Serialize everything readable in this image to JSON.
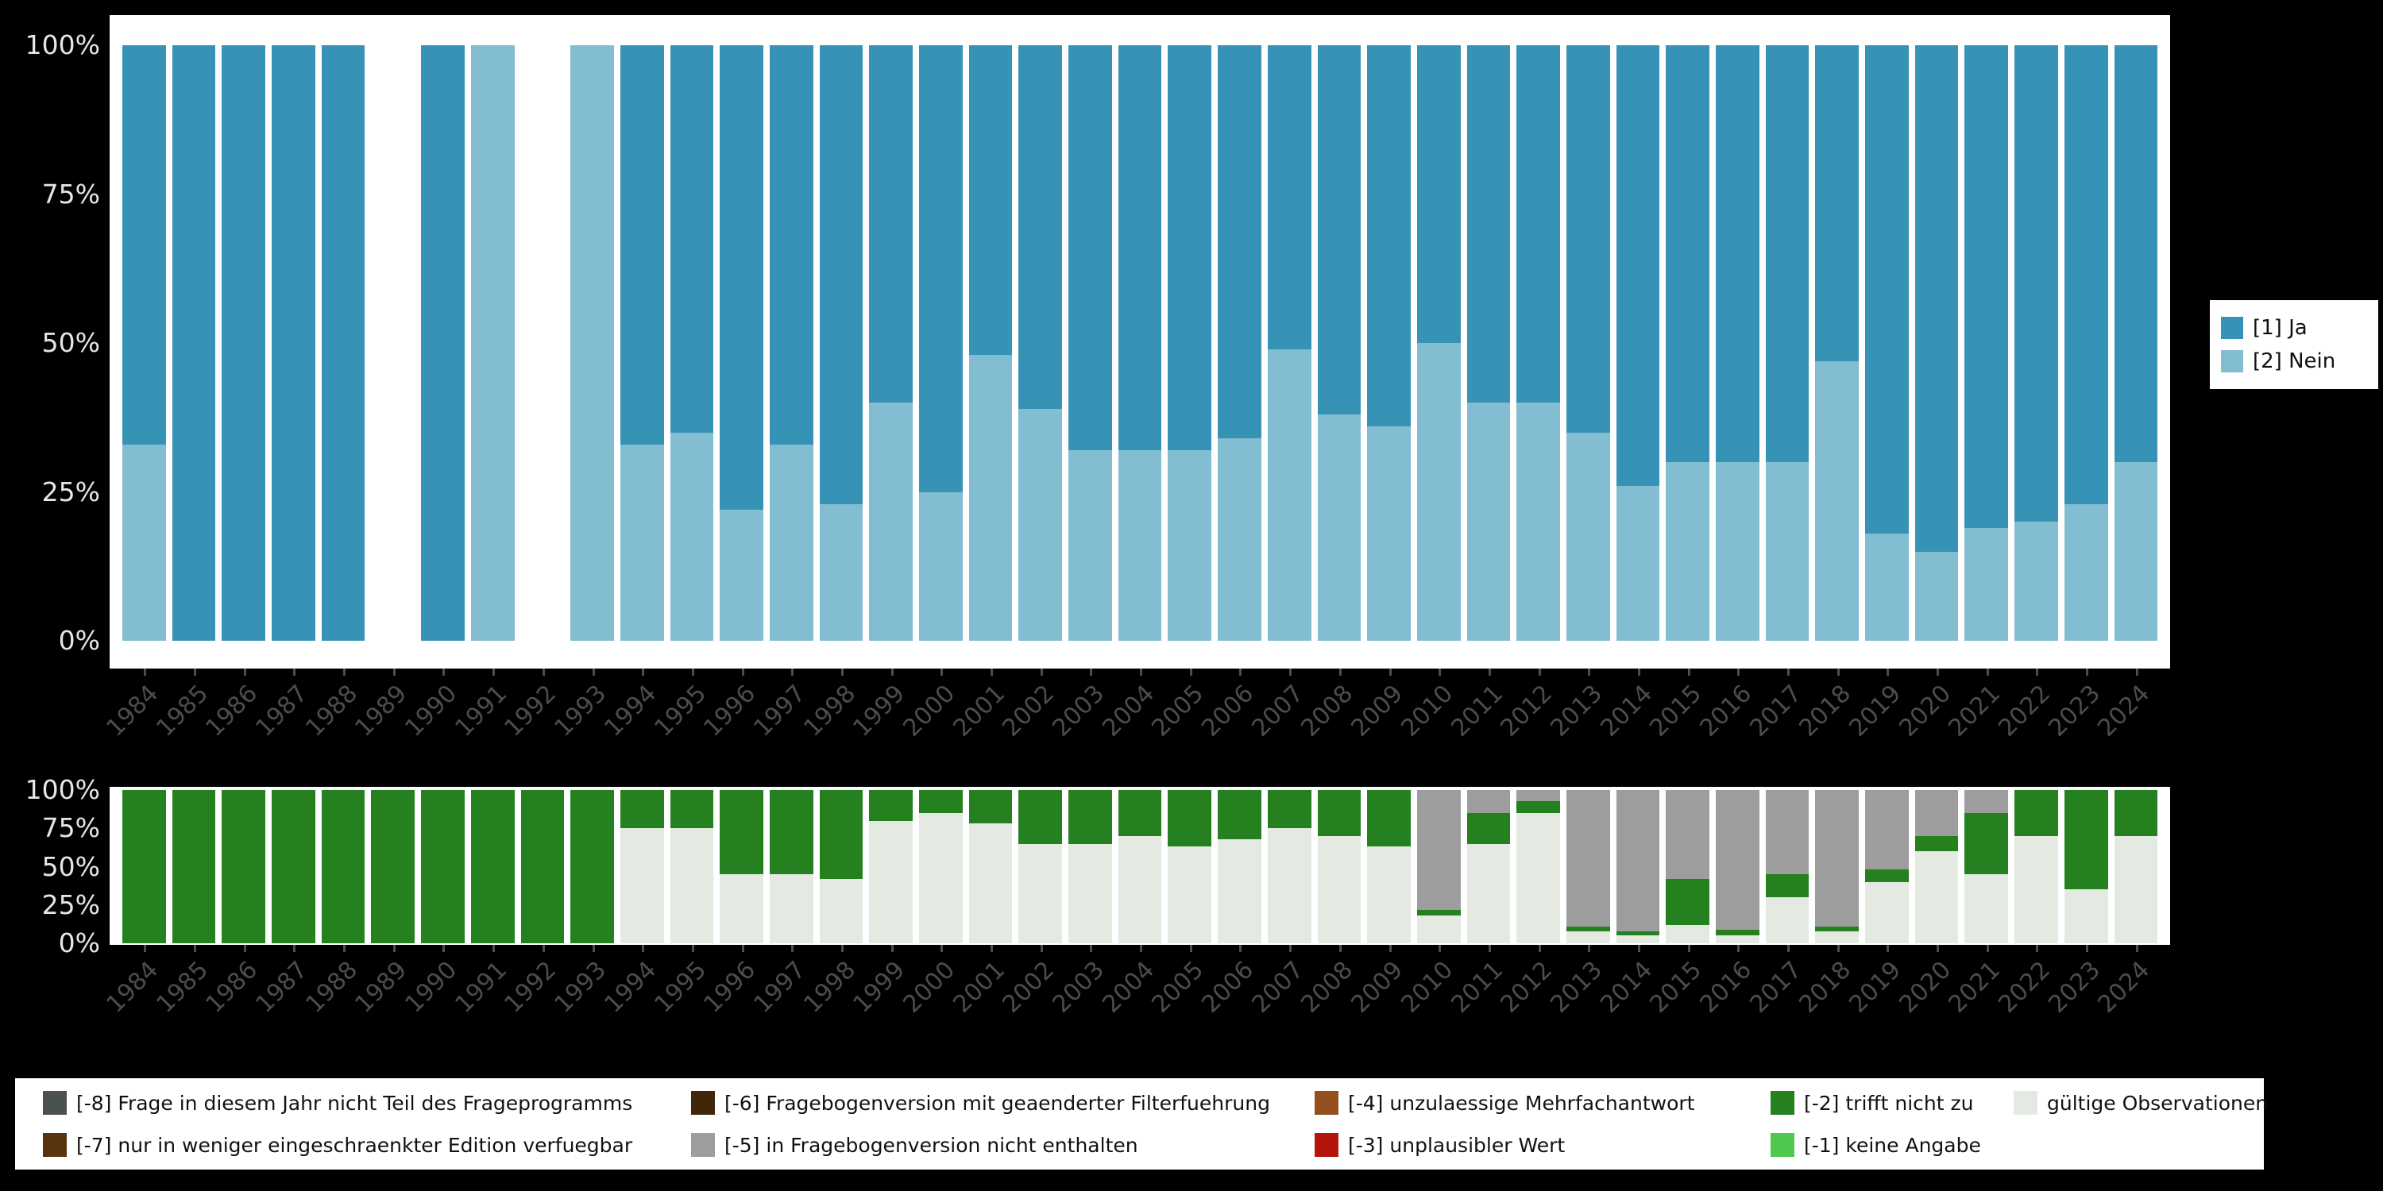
{
  "figure": {
    "background": "#000000",
    "panel_background": "#ffffff"
  },
  "top_legend": {
    "items": [
      {
        "label": "[1] Ja",
        "color": "#3793b5"
      },
      {
        "label": "[2] Nein",
        "color": "#82bdd1"
      }
    ]
  },
  "missing_legend": {
    "rows": [
      [
        {
          "label": "[-8] Frage in diesem Jahr nicht Teil des Frageprogramms",
          "color": "#4a524e"
        },
        {
          "label": "[-6] Fragebogenversion mit geaenderter Filterfuehrung",
          "color": "#3e2807"
        },
        {
          "label": "[-4] unzulaessige Mehrfachantwort",
          "color": "#94501e"
        },
        {
          "label": "[-2] trifft nicht zu",
          "color": "#25801f"
        },
        {
          "label": "gültige Observationen",
          "color": "#e4eae2"
        }
      ],
      [
        {
          "label": "[-7] nur in weniger eingeschraenkter Edition verfuegbar",
          "color": "#59330d"
        },
        {
          "label": "[-5] in Fragebogenversion nicht enthalten",
          "color": "#9d9d9d"
        },
        {
          "label": "[-3] unplausibler Wert",
          "color": "#b3150a"
        },
        {
          "label": "[-1] keine Angabe",
          "color": "#4ec94e"
        }
      ]
    ]
  },
  "chart_data": [
    {
      "type": "bar",
      "stacked": true,
      "title": "",
      "xlabel": "",
      "ylabel": "",
      "grid": false,
      "legend_position": "right",
      "ylim": [
        0,
        100
      ],
      "yticks": [
        {
          "value": 100,
          "label": "100%"
        },
        {
          "value": 75,
          "label": "75%"
        },
        {
          "value": 50,
          "label": "50%"
        },
        {
          "value": 25,
          "label": "25%"
        },
        {
          "value": 0,
          "label": "0%"
        }
      ],
      "categories": [
        "1984",
        "1985",
        "1986",
        "1987",
        "1988",
        "1989",
        "1990",
        "1991",
        "1992",
        "1993",
        "1994",
        "1995",
        "1996",
        "1997",
        "1998",
        "1999",
        "2000",
        "2001",
        "2002",
        "2003",
        "2004",
        "2005",
        "2006",
        "2007",
        "2008",
        "2009",
        "2010",
        "2011",
        "2012",
        "2013",
        "2014",
        "2015",
        "2016",
        "2017",
        "2018",
        "2019",
        "2020",
        "2021",
        "2022",
        "2023",
        "2024"
      ],
      "series": [
        {
          "name": "[2] Nein",
          "color": "#82bdd1",
          "values": [
            33,
            0,
            0,
            0,
            0,
            null,
            0,
            100,
            null,
            100,
            33,
            35,
            22,
            33,
            23,
            40,
            25,
            48,
            39,
            32,
            32,
            32,
            34,
            49,
            38,
            36,
            50,
            40,
            40,
            35,
            26,
            30,
            30,
            30,
            47,
            18,
            15,
            19,
            20,
            23,
            30
          ]
        },
        {
          "name": "[1] Ja",
          "color": "#3793b5",
          "values": [
            67,
            100,
            100,
            100,
            100,
            null,
            100,
            0,
            null,
            0,
            67,
            65,
            78,
            67,
            77,
            60,
            75,
            52,
            61,
            68,
            68,
            68,
            66,
            51,
            62,
            64,
            50,
            60,
            60,
            65,
            74,
            70,
            70,
            70,
            53,
            82,
            85,
            81,
            80,
            77,
            70
          ]
        }
      ]
    },
    {
      "type": "bar",
      "stacked": true,
      "title": "",
      "xlabel": "",
      "ylabel": "",
      "grid": false,
      "legend_position": "bottom",
      "ylim": [
        0,
        100
      ],
      "yticks": [
        {
          "value": 100,
          "label": "100%"
        },
        {
          "value": 75,
          "label": "75%"
        },
        {
          "value": 50,
          "label": "50%"
        },
        {
          "value": 25,
          "label": "25%"
        },
        {
          "value": 0,
          "label": "0%"
        }
      ],
      "categories": [
        "1984",
        "1985",
        "1986",
        "1987",
        "1988",
        "1989",
        "1990",
        "1991",
        "1992",
        "1993",
        "1994",
        "1995",
        "1996",
        "1997",
        "1998",
        "1999",
        "2000",
        "2001",
        "2002",
        "2003",
        "2004",
        "2005",
        "2006",
        "2007",
        "2008",
        "2009",
        "2010",
        "2011",
        "2012",
        "2013",
        "2014",
        "2015",
        "2016",
        "2017",
        "2018",
        "2019",
        "2020",
        "2021",
        "2022",
        "2023",
        "2024"
      ],
      "series": [
        {
          "name": "gültige Observationen",
          "color": "#e4eae2",
          "values": [
            0,
            0,
            0,
            0,
            0,
            0,
            0,
            0,
            0,
            0,
            75,
            75,
            45,
            45,
            42,
            80,
            85,
            78,
            65,
            65,
            70,
            63,
            68,
            75,
            70,
            63,
            18,
            65,
            85,
            8,
            5,
            12,
            5,
            30,
            8,
            40,
            60,
            45,
            70,
            35,
            70
          ]
        },
        {
          "name": "[-2] trifft nicht zu",
          "color": "#25801f",
          "values": [
            100,
            100,
            100,
            100,
            100,
            100,
            100,
            100,
            100,
            100,
            25,
            25,
            55,
            55,
            58,
            20,
            15,
            22,
            35,
            35,
            30,
            37,
            32,
            25,
            30,
            37,
            4,
            20,
            8,
            3,
            3,
            30,
            4,
            15,
            3,
            8,
            10,
            40,
            30,
            65,
            30
          ]
        },
        {
          "name": "[-5] in Fragebogenversion nicht enthalten",
          "color": "#9d9d9d",
          "values": [
            0,
            0,
            0,
            0,
            0,
            0,
            0,
            0,
            0,
            0,
            0,
            0,
            0,
            0,
            0,
            0,
            0,
            0,
            0,
            0,
            0,
            0,
            0,
            0,
            0,
            0,
            78,
            15,
            7,
            89,
            92,
            58,
            91,
            55,
            89,
            52,
            30,
            15,
            0,
            0,
            0
          ]
        }
      ]
    }
  ]
}
